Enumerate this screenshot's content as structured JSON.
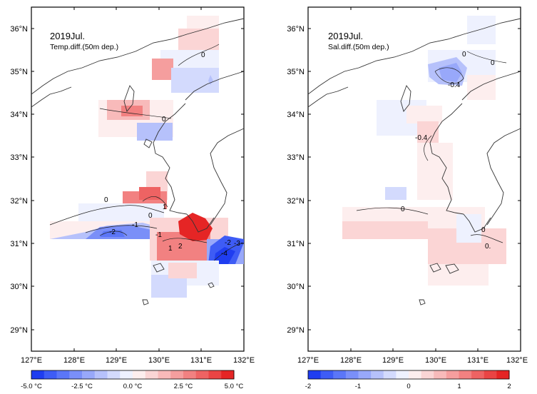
{
  "panels": [
    {
      "id": "temp",
      "title": "2019Jul.",
      "subtitle": "Temp.diff.(50m dep.)",
      "lat_labels": [
        "36°N",
        "35°N",
        "34°N",
        "33°N",
        "32°N",
        "31°N",
        "30°N",
        "29°N"
      ],
      "lon_labels": [
        "127°E",
        "128°E",
        "129°E",
        "130°E",
        "131°E",
        "132°E"
      ],
      "contour_labels": [
        "0",
        "0",
        "0",
        "-1",
        "-2",
        "0",
        "-1",
        "1",
        "2",
        "1",
        "-4",
        "-2",
        "-3"
      ],
      "colorbar": {
        "ticks": [
          "-5.0 °C",
          "-2.5 °C",
          "0.0 °C",
          "2.5 °C",
          "5.0 °C"
        ],
        "colors": [
          "#1f3df0",
          "#3e5cf5",
          "#5b76f7",
          "#7a8ff8",
          "#98a8fa",
          "#b6c1fb",
          "#d3dafd",
          "#eef1fe",
          "#fdeeee",
          "#fbd5d5",
          "#f8baba",
          "#f59e9e",
          "#f28181",
          "#ee6363",
          "#ea4444",
          "#e52525"
        ]
      }
    },
    {
      "id": "sal",
      "title": "2019Jul.",
      "subtitle": "Sal.diff.(50m dep.)",
      "lat_labels": [
        "36°N",
        "35°N",
        "34°N",
        "33°N",
        "32°N",
        "31°N",
        "30°N",
        "29°N"
      ],
      "lon_labels": [
        "127°E",
        "128°E",
        "129°E",
        "130°E",
        "131°E",
        "132°E"
      ],
      "contour_labels": [
        "0",
        "0",
        "-0.4",
        "-0.4",
        "0",
        "0",
        "0."
      ],
      "colorbar": {
        "ticks": [
          "-2",
          "-1",
          "0",
          "1",
          "2"
        ],
        "colors": [
          "#1f3df0",
          "#3e5cf5",
          "#5b76f7",
          "#7a8ff8",
          "#98a8fa",
          "#b6c1fb",
          "#d3dafd",
          "#eef1fe",
          "#fdeeee",
          "#fbd5d5",
          "#f8baba",
          "#f59e9e",
          "#f28181",
          "#ee6363",
          "#ea4444",
          "#e52525"
        ]
      }
    }
  ],
  "colors": {
    "land_outline": "#333333",
    "frame": "#000000"
  }
}
